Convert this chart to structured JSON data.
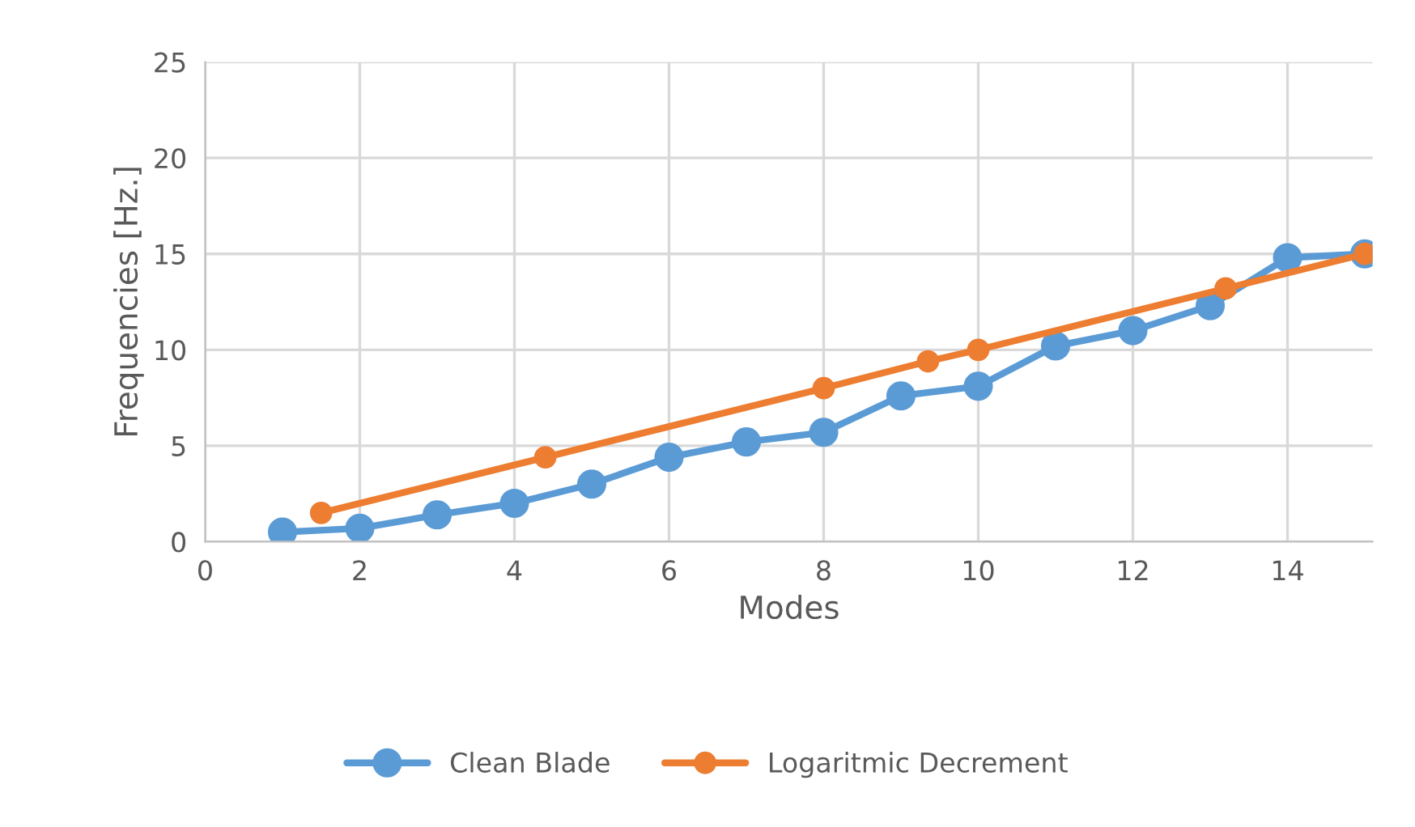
{
  "chart_data": {
    "type": "line",
    "xlabel": "Modes",
    "ylabel": "Frequencies [Hz.]",
    "series": [
      {
        "name": "Clean Blade",
        "color": "#5b9bd5",
        "x": [
          1,
          2,
          3,
          4,
          5,
          6,
          7,
          8,
          9,
          10,
          11,
          12,
          13,
          14,
          15
        ],
        "values": [
          0.5,
          0.7,
          1.4,
          2.0,
          3.0,
          4.4,
          5.2,
          5.7,
          7.6,
          8.1,
          10.2,
          11.0,
          12.3,
          14.8,
          15.0
        ]
      },
      {
        "name": "Logaritmic Decrement",
        "color": "#ed7d31",
        "x": [
          1.5,
          4.4,
          8.0,
          9.35,
          10.0,
          13.2,
          15.0
        ],
        "values": [
          1.5,
          4.4,
          8.0,
          9.4,
          10.0,
          13.2,
          15.0
        ]
      }
    ],
    "xlim": [
      0,
      15.1
    ],
    "xticks": [
      0,
      2,
      4,
      6,
      8,
      10,
      12,
      14
    ],
    "ylim": [
      0,
      25
    ],
    "yticks": [
      0,
      5,
      10,
      15,
      20,
      25
    ],
    "grid": true,
    "legend": "bottom",
    "marker": "circle",
    "line_style": "solid"
  }
}
